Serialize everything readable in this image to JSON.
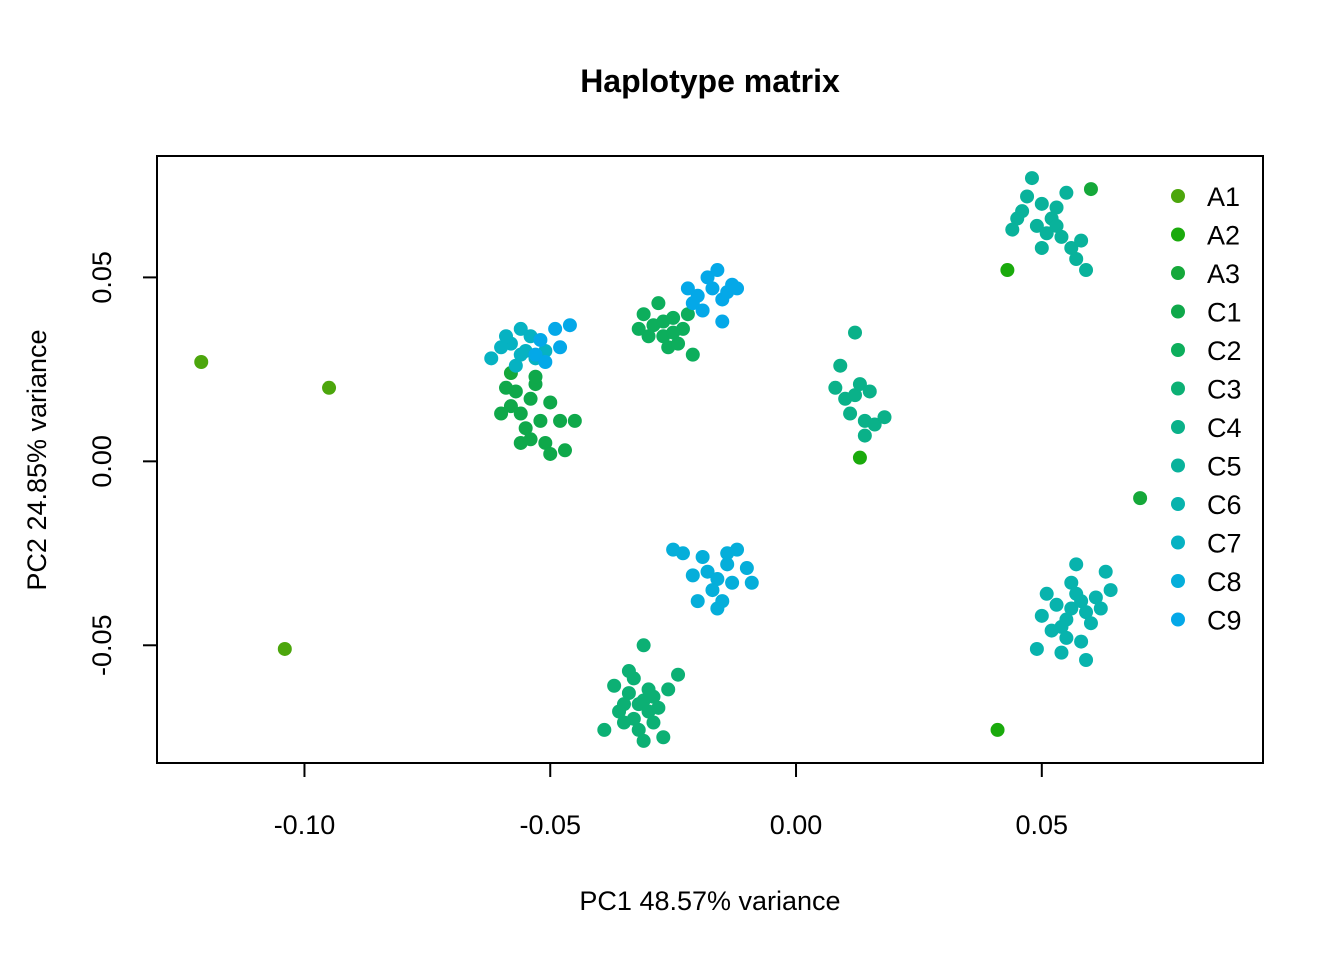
{
  "chart_data": {
    "type": "scatter",
    "title": "Haplotype matrix",
    "xlabel": "PC1  48.57% variance",
    "ylabel": "PC2  24.85% variance",
    "xlim": [
      -0.13,
      0.095
    ],
    "ylim": [
      -0.082,
      0.083
    ],
    "x_ticks": [
      -0.1,
      -0.05,
      0.0,
      0.05
    ],
    "x_tick_labels": [
      "-0.10",
      "-0.05",
      "0.00",
      "0.05"
    ],
    "y_ticks": [
      -0.05,
      0.0,
      0.05
    ],
    "y_tick_labels": [
      "-0.05",
      "0.00",
      "0.05"
    ],
    "grid": false,
    "legend_position": "top-right",
    "series": [
      {
        "name": "A1",
        "color": "#4CA60C",
        "points": [
          [
            -0.121,
            0.027
          ],
          [
            -0.104,
            -0.051
          ],
          [
            -0.095,
            0.02
          ]
        ]
      },
      {
        "name": "A2",
        "color": "#1AAA0C",
        "points": [
          [
            0.041,
            -0.073
          ],
          [
            0.013,
            0.001
          ],
          [
            0.043,
            0.052
          ]
        ]
      },
      {
        "name": "A3",
        "color": "#15A83A",
        "points": [
          [
            0.07,
            -0.01
          ],
          [
            0.06,
            0.074
          ],
          [
            -0.058,
            0.024
          ]
        ]
      },
      {
        "name": "C1",
        "color": "#0FA84A",
        "points": [
          [
            -0.057,
            0.019
          ],
          [
            -0.054,
            0.017
          ],
          [
            -0.056,
            0.013
          ],
          [
            -0.053,
            0.021
          ],
          [
            -0.058,
            0.015
          ],
          [
            -0.052,
            0.011
          ],
          [
            -0.055,
            0.009
          ],
          [
            -0.05,
            0.016
          ],
          [
            -0.048,
            0.011
          ],
          [
            -0.051,
            0.005
          ],
          [
            -0.047,
            0.003
          ],
          [
            -0.059,
            0.02
          ],
          [
            -0.06,
            0.013
          ],
          [
            -0.056,
            0.005
          ],
          [
            -0.053,
            0.023
          ],
          [
            -0.05,
            0.002
          ],
          [
            -0.045,
            0.011
          ],
          [
            -0.054,
            0.006
          ]
        ]
      },
      {
        "name": "C2",
        "color": "#0DAE5C",
        "points": [
          [
            -0.029,
            0.037
          ],
          [
            -0.027,
            0.034
          ],
          [
            -0.025,
            0.039
          ],
          [
            -0.031,
            0.04
          ],
          [
            -0.028,
            0.043
          ],
          [
            -0.026,
            0.031
          ],
          [
            -0.023,
            0.036
          ],
          [
            -0.03,
            0.034
          ],
          [
            -0.021,
            0.029
          ],
          [
            -0.024,
            0.032
          ],
          [
            -0.032,
            0.036
          ],
          [
            -0.027,
            0.038
          ],
          [
            -0.022,
            0.04
          ],
          [
            -0.025,
            0.035
          ]
        ]
      },
      {
        "name": "C3",
        "color": "#0CB074",
        "points": [
          [
            -0.034,
            -0.063
          ],
          [
            -0.032,
            -0.066
          ],
          [
            -0.03,
            -0.068
          ],
          [
            -0.033,
            -0.07
          ],
          [
            -0.031,
            -0.065
          ],
          [
            -0.035,
            -0.066
          ],
          [
            -0.029,
            -0.071
          ],
          [
            -0.036,
            -0.068
          ],
          [
            -0.03,
            -0.062
          ],
          [
            -0.032,
            -0.073
          ],
          [
            -0.028,
            -0.067
          ],
          [
            -0.037,
            -0.061
          ],
          [
            -0.031,
            -0.05
          ],
          [
            -0.034,
            -0.057
          ],
          [
            -0.039,
            -0.073
          ],
          [
            -0.024,
            -0.058
          ],
          [
            -0.026,
            -0.062
          ],
          [
            -0.031,
            -0.076
          ],
          [
            -0.027,
            -0.075
          ],
          [
            -0.033,
            -0.059
          ],
          [
            -0.029,
            -0.064
          ],
          [
            -0.035,
            -0.071
          ]
        ]
      },
      {
        "name": "C4",
        "color": "#0AB189",
        "points": [
          [
            0.012,
            0.035
          ],
          [
            0.009,
            0.026
          ],
          [
            0.008,
            0.02
          ],
          [
            0.01,
            0.017
          ],
          [
            0.012,
            0.018
          ],
          [
            0.013,
            0.021
          ],
          [
            0.015,
            0.019
          ],
          [
            0.011,
            0.013
          ],
          [
            0.014,
            0.011
          ],
          [
            0.016,
            0.01
          ],
          [
            0.018,
            0.012
          ],
          [
            0.014,
            0.007
          ]
        ]
      },
      {
        "name": "C5",
        "color": "#09B29B",
        "points": [
          [
            0.05,
            0.07
          ],
          [
            0.048,
            0.077
          ],
          [
            0.047,
            0.072
          ],
          [
            0.053,
            0.069
          ],
          [
            0.055,
            0.073
          ],
          [
            0.052,
            0.066
          ],
          [
            0.049,
            0.064
          ],
          [
            0.054,
            0.061
          ],
          [
            0.056,
            0.058
          ],
          [
            0.058,
            0.06
          ],
          [
            0.051,
            0.062
          ],
          [
            0.053,
            0.064
          ],
          [
            0.046,
            0.068
          ],
          [
            0.057,
            0.055
          ],
          [
            0.059,
            0.052
          ],
          [
            0.045,
            0.066
          ],
          [
            0.044,
            0.063
          ],
          [
            0.05,
            0.058
          ]
        ]
      },
      {
        "name": "C6",
        "color": "#08B3AD",
        "points": [
          [
            0.056,
            -0.04
          ],
          [
            0.055,
            -0.043
          ],
          [
            0.058,
            -0.038
          ],
          [
            0.054,
            -0.045
          ],
          [
            0.057,
            -0.036
          ],
          [
            0.059,
            -0.041
          ],
          [
            0.053,
            -0.039
          ],
          [
            0.052,
            -0.046
          ],
          [
            0.06,
            -0.044
          ],
          [
            0.055,
            -0.048
          ],
          [
            0.058,
            -0.049
          ],
          [
            0.061,
            -0.037
          ],
          [
            0.05,
            -0.042
          ],
          [
            0.056,
            -0.033
          ],
          [
            0.062,
            -0.04
          ],
          [
            0.064,
            -0.035
          ],
          [
            0.057,
            -0.028
          ],
          [
            0.054,
            -0.052
          ],
          [
            0.059,
            -0.054
          ],
          [
            0.049,
            -0.051
          ],
          [
            0.063,
            -0.03
          ],
          [
            0.051,
            -0.036
          ]
        ]
      },
      {
        "name": "C7",
        "color": "#06B2C2",
        "points": [
          [
            -0.058,
            0.032
          ],
          [
            -0.056,
            0.029
          ],
          [
            -0.054,
            0.034
          ],
          [
            -0.057,
            0.026
          ],
          [
            -0.055,
            0.03
          ],
          [
            -0.06,
            0.031
          ],
          [
            -0.053,
            0.028
          ],
          [
            -0.059,
            0.034
          ],
          [
            -0.051,
            0.03
          ],
          [
            -0.056,
            0.036
          ],
          [
            -0.062,
            0.028
          ]
        ]
      },
      {
        "name": "C8",
        "color": "#05AEDA",
        "points": [
          [
            -0.018,
            -0.03
          ],
          [
            -0.016,
            -0.032
          ],
          [
            -0.014,
            -0.028
          ],
          [
            -0.019,
            -0.026
          ],
          [
            -0.013,
            -0.033
          ],
          [
            -0.017,
            -0.035
          ],
          [
            -0.021,
            -0.031
          ],
          [
            -0.012,
            -0.024
          ],
          [
            -0.015,
            -0.038
          ],
          [
            -0.01,
            -0.029
          ],
          [
            -0.023,
            -0.025
          ],
          [
            -0.009,
            -0.033
          ],
          [
            -0.02,
            -0.038
          ],
          [
            -0.016,
            -0.04
          ],
          [
            -0.025,
            -0.024
          ],
          [
            -0.014,
            -0.025
          ]
        ]
      },
      {
        "name": "C9",
        "color": "#04A8E8",
        "points": [
          [
            -0.017,
            0.047
          ],
          [
            -0.015,
            0.044
          ],
          [
            -0.018,
            0.05
          ],
          [
            -0.016,
            0.052
          ],
          [
            -0.013,
            0.048
          ],
          [
            -0.02,
            0.045
          ],
          [
            -0.019,
            0.041
          ],
          [
            -0.014,
            0.046
          ],
          [
            -0.012,
            0.047
          ],
          [
            -0.021,
            0.043
          ],
          [
            -0.022,
            0.047
          ],
          [
            -0.015,
            0.038
          ],
          [
            -0.052,
            0.033
          ],
          [
            -0.049,
            0.036
          ],
          [
            -0.046,
            0.037
          ],
          [
            -0.053,
            0.029
          ],
          [
            -0.048,
            0.031
          ],
          [
            -0.051,
            0.027
          ]
        ]
      }
    ]
  }
}
